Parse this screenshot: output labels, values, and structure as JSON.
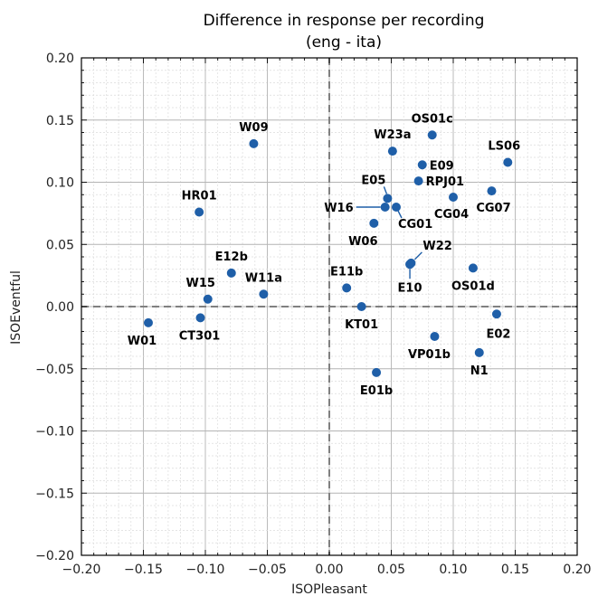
{
  "chart_data": {
    "type": "scatter",
    "title": "Difference in response per recording",
    "subtitle": "(eng - ita)",
    "xlabel": "ISOPleasant",
    "ylabel": "ISOEventful",
    "xlim": [
      -0.2,
      0.2
    ],
    "ylim": [
      -0.2,
      0.2
    ],
    "xticks": [
      "−0.20",
      "−0.15",
      "−0.10",
      "−0.05",
      "0.00",
      "0.05",
      "0.10",
      "0.15",
      "0.20"
    ],
    "yticks": [
      "0.20",
      "0.15",
      "0.10",
      "0.05",
      "0.00",
      "−0.05",
      "−0.10",
      "−0.15",
      "−0.20"
    ],
    "grid": true,
    "zero_lines": true,
    "marker_color": "#1f5fa8",
    "points": [
      {
        "label": "W09",
        "x": -0.061,
        "y": 0.131
      },
      {
        "label": "OS01c",
        "x": 0.083,
        "y": 0.138
      },
      {
        "label": "W23a",
        "x": 0.051,
        "y": 0.125
      },
      {
        "label": "LS06",
        "x": 0.144,
        "y": 0.116
      },
      {
        "label": "E09",
        "x": 0.075,
        "y": 0.114
      },
      {
        "label": "RPJ01",
        "x": 0.072,
        "y": 0.101
      },
      {
        "label": "CG07",
        "x": 0.131,
        "y": 0.093
      },
      {
        "label": "CG04",
        "x": 0.1,
        "y": 0.088
      },
      {
        "label": "E05",
        "x": 0.047,
        "y": 0.087
      },
      {
        "label": "W16",
        "x": 0.045,
        "y": 0.08
      },
      {
        "label": "CG01",
        "x": 0.054,
        "y": 0.08
      },
      {
        "label": "HR01",
        "x": -0.105,
        "y": 0.076
      },
      {
        "label": "W06",
        "x": 0.036,
        "y": 0.067
      },
      {
        "label": "W22",
        "x": 0.066,
        "y": 0.035
      },
      {
        "label": "E10",
        "x": 0.065,
        "y": 0.034
      },
      {
        "label": "OS01d",
        "x": 0.116,
        "y": 0.031
      },
      {
        "label": "E12b",
        "x": -0.079,
        "y": 0.027
      },
      {
        "label": "E11b",
        "x": 0.014,
        "y": 0.015
      },
      {
        "label": "W11a",
        "x": -0.053,
        "y": 0.01
      },
      {
        "label": "W15",
        "x": -0.098,
        "y": 0.006
      },
      {
        "label": "KT01",
        "x": 0.026,
        "y": 0.0
      },
      {
        "label": "E02",
        "x": 0.135,
        "y": -0.006
      },
      {
        "label": "CT301",
        "x": -0.104,
        "y": -0.009
      },
      {
        "label": "W01",
        "x": -0.146,
        "y": -0.013
      },
      {
        "label": "VP01b",
        "x": 0.085,
        "y": -0.024
      },
      {
        "label": "N1",
        "x": 0.121,
        "y": -0.037
      },
      {
        "label": "E01b",
        "x": 0.038,
        "y": -0.053
      }
    ]
  }
}
